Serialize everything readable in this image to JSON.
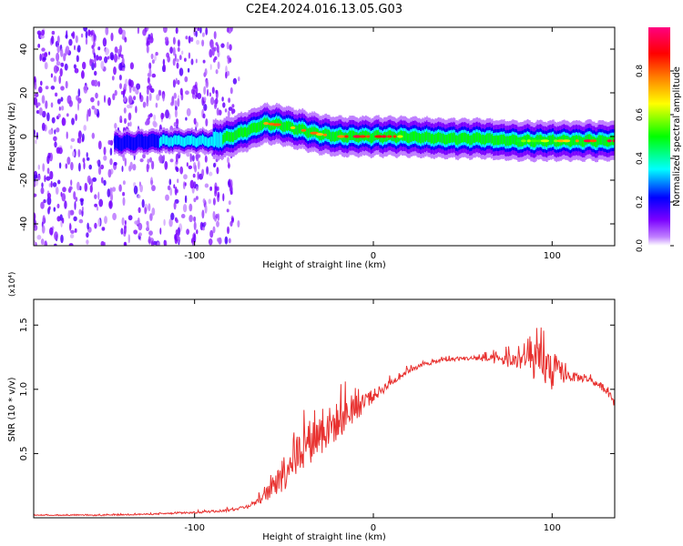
{
  "title": "C2E4.2024.016.13.05.G03",
  "chart_data": [
    {
      "type": "heatmap",
      "xlabel": "Height of straight line (km)",
      "ylabel": "Frequency (Hz)",
      "xlim": [
        -190,
        135
      ],
      "ylim": [
        -50,
        50
      ],
      "xticks": [
        -100,
        0,
        100
      ],
      "yticks": [
        -40,
        -20,
        0,
        20,
        40
      ],
      "colorbar": {
        "label": "Normalized spectral amplitude",
        "range": [
          0.0,
          1.0
        ],
        "ticks": [
          "0.0",
          "0.2",
          "0.4",
          "0.6",
          "0.8"
        ],
        "colors": [
          "#ffffff",
          "#c080ff",
          "#7a00ff",
          "#0000ff",
          "#00ffff",
          "#00ff00",
          "#ffff00",
          "#ff8000",
          "#ff0000",
          "#ff0080"
        ]
      },
      "ridge": {
        "x": [
          -140,
          -120,
          -100,
          -90,
          -80,
          -70,
          -60,
          -50,
          -40,
          -30,
          -20,
          -10,
          0,
          10,
          20,
          40,
          60,
          80,
          100,
          120,
          135
        ],
        "freq": [
          -3,
          -2,
          -2,
          -2,
          0,
          3,
          6,
          5,
          3,
          1,
          0,
          0,
          0,
          0,
          0,
          -1,
          -1,
          -2,
          -2,
          -2,
          -2
        ],
        "peak_amplitude": [
          0.3,
          0.35,
          0.4,
          0.45,
          0.55,
          0.7,
          0.85,
          0.8,
          0.8,
          0.85,
          0.9,
          0.95,
          0.95,
          0.9,
          0.6,
          0.55,
          0.55,
          0.6,
          0.7,
          0.95,
          0.95
        ]
      },
      "noise_region_x": [
        -190,
        -75
      ]
    },
    {
      "type": "line",
      "xlabel": "Height of straight line (km)",
      "ylabel": "SNR (10 * v/v)",
      "y_multiplier": "(x10⁴)",
      "xlim": [
        -190,
        135
      ],
      "ylim": [
        0,
        1.7
      ],
      "xticks": [
        -100,
        0,
        100
      ],
      "yticks": [
        0.5,
        1.0,
        1.5
      ],
      "series": [
        {
          "color": "#e8312f",
          "x": [
            -190,
            -150,
            -120,
            -100,
            -80,
            -70,
            -60,
            -50,
            -40,
            -30,
            -20,
            -10,
            0,
            10,
            20,
            30,
            40,
            50,
            60,
            70,
            80,
            85,
            90,
            95,
            100,
            105,
            110,
            120,
            130,
            135
          ],
          "y": [
            0.02,
            0.02,
            0.03,
            0.04,
            0.06,
            0.09,
            0.17,
            0.35,
            0.55,
            0.65,
            0.75,
            0.85,
            0.95,
            1.05,
            1.15,
            1.2,
            1.23,
            1.24,
            1.24,
            1.23,
            1.22,
            1.22,
            1.2,
            1.18,
            1.15,
            1.12,
            1.1,
            1.08,
            1.0,
            0.9
          ],
          "noise": [
            0.005,
            0.008,
            0.01,
            0.015,
            0.02,
            0.03,
            0.08,
            0.3,
            0.35,
            0.35,
            0.3,
            0.2,
            0.1,
            0.06,
            0.04,
            0.03,
            0.03,
            0.03,
            0.04,
            0.08,
            0.15,
            0.2,
            0.25,
            0.3,
            0.35,
            0.15,
            0.08,
            0.05,
            0.06,
            0.08
          ]
        }
      ]
    }
  ]
}
